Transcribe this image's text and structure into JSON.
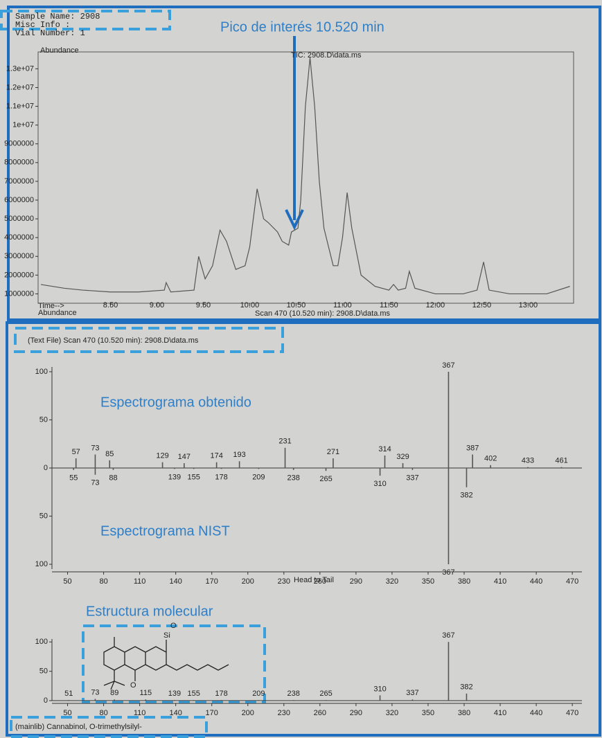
{
  "header": {
    "lines": [
      "Sample Name: 2908",
      "Misc Info :",
      "Vial Number: 1"
    ]
  },
  "chart_data": [
    {
      "type": "line",
      "title": "TIC: 2908.D\\data.ms",
      "annotation": "Pico de interés 10.520 min",
      "y_label": "Abundance",
      "x_label": "Time-->",
      "footer_label": "Abundance",
      "footer_title": "Scan 470 (10.520 min): 2908.D\\data.ms",
      "color": "#555555",
      "xlim": [
        7.72,
        13.49
      ],
      "ylim": [
        500000,
        13900000
      ],
      "xticks": [
        {
          "value": 8.5,
          "label": "8.50"
        },
        {
          "value": 9,
          "label": "9.00"
        },
        {
          "value": 9.5,
          "label": "9.50"
        },
        {
          "value": 10,
          "label": "10.00"
        },
        {
          "value": 10.5,
          "label": "10.50"
        },
        {
          "value": 11,
          "label": "11.00"
        },
        {
          "value": 11.5,
          "label": "11.50"
        },
        {
          "value": 12,
          "label": "12.00"
        },
        {
          "value": 12.5,
          "label": "12.50"
        },
        {
          "value": 13,
          "label": "13.00"
        }
      ],
      "yticks": [
        1000000,
        2000000,
        3000000,
        4000000,
        5000000,
        6000000,
        7000000,
        8000000,
        9000000,
        {
          "value": 10000000,
          "label": "1e+07"
        },
        {
          "value": 11000000,
          "label": "1.1e+07"
        },
        {
          "value": 12000000,
          "label": "1.2e+07"
        },
        {
          "value": 13000000,
          "label": "1.3e+07"
        }
      ],
      "x": [
        7.75,
        8.0,
        8.2,
        8.5,
        8.8,
        9.08,
        9.1,
        9.15,
        9.4,
        9.45,
        9.52,
        9.6,
        9.68,
        9.75,
        9.85,
        9.95,
        10.0,
        10.08,
        10.15,
        10.2,
        10.3,
        10.35,
        10.42,
        10.45,
        10.52,
        10.55,
        10.6,
        10.65,
        10.7,
        10.75,
        10.8,
        10.85,
        10.9,
        10.95,
        11.0,
        11.05,
        11.1,
        11.2,
        11.35,
        11.5,
        11.55,
        11.6,
        11.68,
        11.72,
        11.78,
        12.0,
        12.3,
        12.45,
        12.52,
        12.58,
        12.8,
        13.2,
        13.45
      ],
      "values": [
        1500000,
        1300000,
        1200000,
        1100000,
        1100000,
        1200000,
        1600000,
        1100000,
        1200000,
        3000000,
        1800000,
        2500000,
        4400000,
        3800000,
        2300000,
        2500000,
        3500000,
        6600000,
        5000000,
        4800000,
        4300000,
        3800000,
        3600000,
        4300000,
        4500000,
        6000000,
        11000000,
        13600000,
        11000000,
        7000000,
        4500000,
        3500000,
        2500000,
        2500000,
        4000000,
        6400000,
        4500000,
        2000000,
        1400000,
        1200000,
        1500000,
        1200000,
        1300000,
        2200000,
        1300000,
        1000000,
        1000000,
        1200000,
        2700000,
        1200000,
        1000000,
        1000000,
        1400000
      ]
    },
    {
      "type": "spectrum",
      "title": "(Text File) Scan 470 (10.520 min): 2908.D\\data.ms",
      "x_label": "Head to Tail",
      "xlim": [
        37,
        478
      ],
      "ylim": [
        -105,
        105
      ],
      "xticks": [
        50,
        80,
        110,
        140,
        170,
        200,
        230,
        260,
        290,
        320,
        350,
        380,
        410,
        440,
        470
      ],
      "yticks": [
        100,
        50,
        0,
        {
          "value": -50,
          "label": "50"
        },
        {
          "value": -100,
          "label": "100"
        }
      ],
      "series": [
        {
          "name": "Espectrograma obtenido",
          "color": "#555555",
          "x": [
            57,
            73,
            85,
            129,
            147,
            174,
            193,
            231,
            271,
            314,
            329,
            367,
            387,
            402,
            433,
            461
          ],
          "values": [
            10,
            14,
            8,
            6,
            5,
            6,
            7,
            21,
            10,
            13,
            5,
            100,
            14,
            3,
            1,
            1
          ]
        },
        {
          "name": "Espectrograma NIST",
          "color": "#555555",
          "x": [
            55,
            73,
            88,
            139,
            155,
            178,
            209,
            238,
            265,
            310,
            337,
            367,
            382
          ],
          "values": [
            -2,
            -7,
            -2,
            -1,
            -1,
            -1,
            -1,
            -2,
            -3,
            -8,
            -2,
            -100,
            -20
          ]
        }
      ]
    },
    {
      "type": "spectrum",
      "title": "(mainlib) Cannabinol, O-trimethylsilyl-",
      "annotation": "Estructura molecular",
      "structure_atoms": [
        "O",
        "Si",
        "O"
      ],
      "xlim": [
        37,
        478
      ],
      "ylim": [
        0,
        105
      ],
      "xticks": [
        50,
        80,
        110,
        140,
        170,
        200,
        230,
        260,
        290,
        320,
        350,
        380,
        410,
        440,
        470
      ],
      "yticks": [
        100,
        50,
        0
      ],
      "series": [
        {
          "color": "#555555",
          "x": [
            51,
            73,
            89,
            115,
            139,
            155,
            178,
            209,
            238,
            265,
            310,
            337,
            367,
            382
          ],
          "values": [
            1,
            3,
            2,
            2,
            1,
            1,
            1,
            1,
            1,
            1,
            9,
            2,
            100,
            12
          ]
        }
      ]
    }
  ]
}
